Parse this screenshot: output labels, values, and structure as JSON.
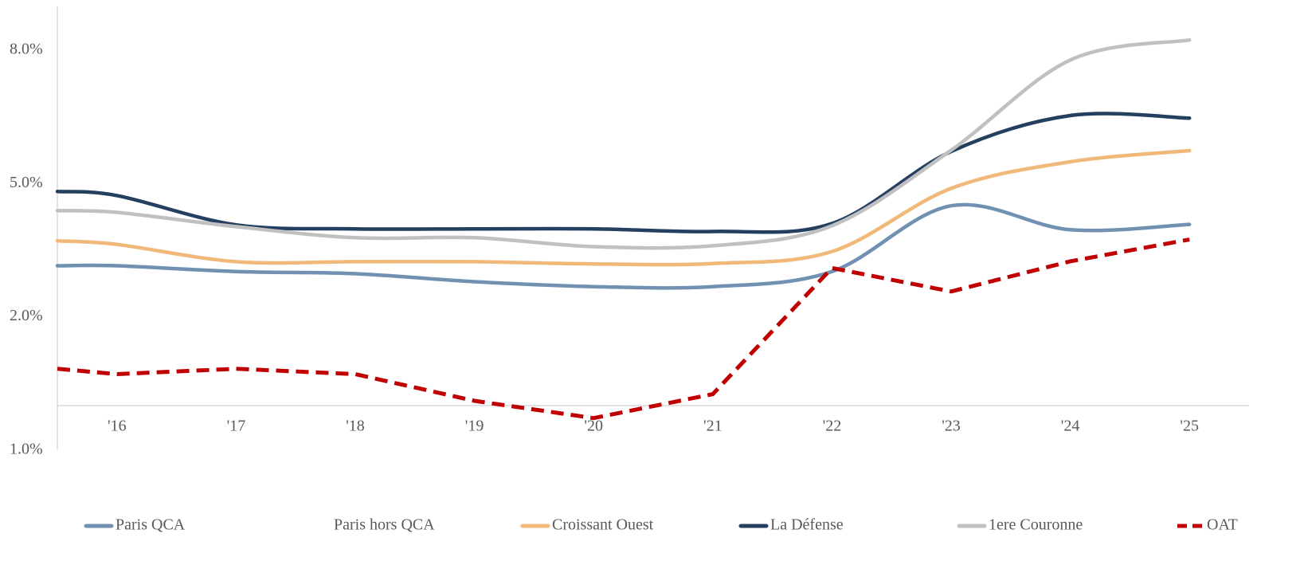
{
  "chart_data": {
    "type": "line",
    "x": [
      2015.5,
      2016,
      2017,
      2018,
      2019,
      2020,
      2021,
      2022,
      2023,
      2024,
      2025
    ],
    "xlim": [
      2015.5,
      2025.5
    ],
    "xticks": [
      {
        "value": 2016,
        "label": "'16"
      },
      {
        "value": 2017,
        "label": "'17"
      },
      {
        "value": 2018,
        "label": "'18"
      },
      {
        "value": 2019,
        "label": "'19"
      },
      {
        "value": 2020,
        "label": "'20"
      },
      {
        "value": 2021,
        "label": "'21"
      },
      {
        "value": 2022,
        "label": "'22"
      },
      {
        "value": 2023,
        "label": "'23"
      },
      {
        "value": 2024,
        "label": "'24"
      },
      {
        "value": 2025,
        "label": "'25"
      }
    ],
    "ylim": [
      1,
      9
    ],
    "yticks": [
      {
        "value": 8,
        "label": "8.0%"
      },
      {
        "value": 5,
        "label": "5.0%"
      },
      {
        "value": 2,
        "label": "2.0%"
      },
      {
        "value": 1,
        "label": "1.0%"
      }
    ],
    "legend": "bottom",
    "series": [
      {
        "name": "Paris QCA",
        "color": "#7191b2",
        "smooth": true,
        "values": [
          3.15,
          3.15,
          3.02,
          2.97,
          2.79,
          2.68,
          2.68,
          3.02,
          4.5,
          3.96,
          4.08
        ]
      },
      {
        "name": "Paris hors QCA",
        "color": "#ffffff",
        "smooth": true,
        "values": [
          null,
          null,
          null,
          null,
          null,
          null,
          null,
          null,
          null,
          null,
          null
        ]
      },
      {
        "name": "Croissant Ouest",
        "color": "#f0b97a",
        "smooth": true,
        "values": [
          3.71,
          3.63,
          3.24,
          3.24,
          3.24,
          3.19,
          3.2,
          3.47,
          4.89,
          5.49,
          5.74
        ]
      },
      {
        "name": "La Défense",
        "color": "#243f60",
        "smooth": true,
        "values": [
          4.82,
          4.73,
          4.07,
          3.98,
          3.98,
          3.98,
          3.92,
          4.1,
          5.72,
          6.53,
          6.47
        ]
      },
      {
        "name": "1ere Couronne",
        "color": "#c0c0c0",
        "smooth": true,
        "values": [
          4.39,
          4.35,
          4.03,
          3.78,
          3.78,
          3.58,
          3.6,
          4.05,
          5.75,
          7.78,
          8.23
        ]
      },
      {
        "name": "OAT",
        "color": "#c00000",
        "dashed": true,
        "smooth": false,
        "values": [
          1.61,
          1.57,
          1.61,
          1.57,
          1.37,
          1.24,
          1.42,
          3.1,
          2.57,
          3.25,
          3.74
        ]
      }
    ]
  }
}
